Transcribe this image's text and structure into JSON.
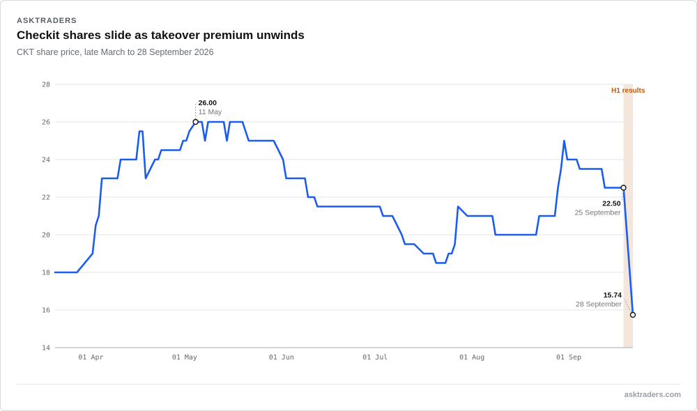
{
  "header": {
    "brand": "ASKTRADERS",
    "title": "Checkit shares slide as takeover premium unwinds",
    "subtitle": "CKT share price, late March to 28 September 2026"
  },
  "footer": {
    "source": "asktraders.com"
  },
  "colors": {
    "line": "#1a5cf0",
    "band": "#f5e6dc",
    "event_text": "#c05a12",
    "grid": "#e6e6e6"
  },
  "chart_data": {
    "type": "line",
    "title": "Checkit shares slide as takeover premium unwinds",
    "subtitle": "CKT share price, late March to 28 September 2026",
    "xlabel": "",
    "ylabel": "",
    "ylim": [
      14,
      28
    ],
    "xlim": [
      "2026-03-27",
      "2026-09-28"
    ],
    "grid": true,
    "y_ticks": [
      "14",
      "16",
      "18",
      "20",
      "22",
      "24",
      "26",
      "28"
    ],
    "x_ticks": [
      {
        "date": "2026-04-01",
        "label": "01 Apr"
      },
      {
        "date": "2026-05-01",
        "label": "01 May"
      },
      {
        "date": "2026-06-01",
        "label": "01 Jun"
      },
      {
        "date": "2026-07-01",
        "label": "01 Jul"
      },
      {
        "date": "2026-08-01",
        "label": "01 Aug"
      },
      {
        "date": "2026-09-01",
        "label": "01 Sep"
      }
    ],
    "series": [
      {
        "name": "",
        "points": [
          [
            "2026-03-27",
            18.0
          ],
          [
            "2026-04-03",
            18.0
          ],
          [
            "2026-04-08",
            19.0
          ],
          [
            "2026-04-09",
            20.5
          ],
          [
            "2026-04-10",
            21.0
          ],
          [
            "2026-04-11",
            23.0
          ],
          [
            "2026-04-16",
            23.0
          ],
          [
            "2026-04-17",
            24.0
          ],
          [
            "2026-04-22",
            24.0
          ],
          [
            "2026-04-23",
            25.5
          ],
          [
            "2026-04-24",
            25.5
          ],
          [
            "2026-04-25",
            23.0
          ],
          [
            "2026-04-28",
            24.0
          ],
          [
            "2026-04-29",
            24.0
          ],
          [
            "2026-04-30",
            24.5
          ],
          [
            "2026-05-06",
            24.5
          ],
          [
            "2026-05-07",
            25.0
          ],
          [
            "2026-05-08",
            25.0
          ],
          [
            "2026-05-09",
            25.5
          ],
          [
            "2026-05-11",
            26.0
          ],
          [
            "2026-05-13",
            26.0
          ],
          [
            "2026-05-14",
            25.0
          ],
          [
            "2026-05-15",
            26.0
          ],
          [
            "2026-05-20",
            26.0
          ],
          [
            "2026-05-21",
            25.0
          ],
          [
            "2026-05-22",
            26.0
          ],
          [
            "2026-05-26",
            26.0
          ],
          [
            "2026-05-28",
            25.0
          ],
          [
            "2026-06-05",
            25.0
          ],
          [
            "2026-06-08",
            24.0
          ],
          [
            "2026-06-09",
            23.0
          ],
          [
            "2026-06-15",
            23.0
          ],
          [
            "2026-06-16",
            22.0
          ],
          [
            "2026-06-18",
            22.0
          ],
          [
            "2026-06-19",
            21.5
          ],
          [
            "2026-07-09",
            21.5
          ],
          [
            "2026-07-10",
            21.0
          ],
          [
            "2026-07-13",
            21.0
          ],
          [
            "2026-07-16",
            20.0
          ],
          [
            "2026-07-17",
            19.5
          ],
          [
            "2026-07-20",
            19.5
          ],
          [
            "2026-07-23",
            19.0
          ],
          [
            "2026-07-26",
            19.0
          ],
          [
            "2026-07-27",
            18.5
          ],
          [
            "2026-07-30",
            18.5
          ],
          [
            "2026-07-31",
            19.0
          ],
          [
            "2026-08-01",
            19.0
          ],
          [
            "2026-08-02",
            19.5
          ],
          [
            "2026-08-03",
            21.5
          ],
          [
            "2026-08-06",
            21.0
          ],
          [
            "2026-08-14",
            21.0
          ],
          [
            "2026-08-15",
            20.0
          ],
          [
            "2026-08-28",
            20.0
          ],
          [
            "2026-08-29",
            21.0
          ],
          [
            "2026-09-03",
            21.0
          ],
          [
            "2026-09-04",
            22.5
          ],
          [
            "2026-09-05",
            23.5
          ],
          [
            "2026-09-06",
            25.0
          ],
          [
            "2026-09-07",
            24.0
          ],
          [
            "2026-09-10",
            24.0
          ],
          [
            "2026-09-11",
            23.5
          ],
          [
            "2026-09-18",
            23.5
          ],
          [
            "2026-09-19",
            22.5
          ],
          [
            "2026-09-25",
            22.5
          ],
          [
            "2026-09-28",
            15.74
          ]
        ]
      }
    ],
    "annotations": [
      {
        "date": "2026-05-11",
        "value_label": "26.00",
        "date_label": "11 May",
        "value": 26.0,
        "side": "above"
      },
      {
        "date": "2026-09-25",
        "value_label": "22.50",
        "date_label": "25 September",
        "value": 22.5,
        "side": "below-left"
      },
      {
        "date": "2026-09-28",
        "value_label": "15.74",
        "date_label": "28 September",
        "value": 15.74,
        "side": "above-left"
      }
    ],
    "event_band": {
      "from": "2026-09-25",
      "to": "2026-09-28",
      "label": "H1 results"
    }
  }
}
